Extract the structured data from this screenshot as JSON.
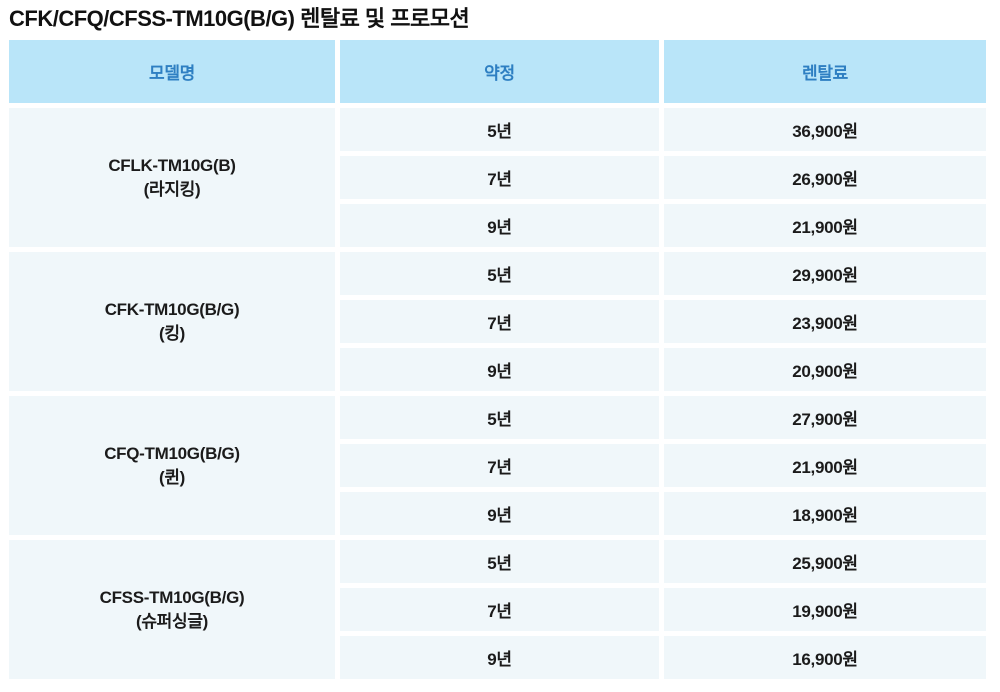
{
  "title": "CFK/CFQ/CFSS-TM10G(B/G) 렌탈료 및 프로모션",
  "colors": {
    "header_bg": "#b9e5f9",
    "header_text": "#2e7fc2",
    "cell_bg": "#f0f7fa",
    "body_text": "#1b1b1b"
  },
  "table": {
    "headers": [
      "모델명",
      "약정",
      "렌탈료"
    ],
    "groups": [
      {
        "model": "CFLK-TM10G(B)",
        "variant": "(라지킹)",
        "rows": [
          [
            "5년",
            "36,900원"
          ],
          [
            "7년",
            "26,900원"
          ],
          [
            "9년",
            "21,900원"
          ]
        ]
      },
      {
        "model": "CFK-TM10G(B/G)",
        "variant": "(킹)",
        "rows": [
          [
            "5년",
            "29,900원"
          ],
          [
            "7년",
            "23,900원"
          ],
          [
            "9년",
            "20,900원"
          ]
        ]
      },
      {
        "model": "CFQ-TM10G(B/G)",
        "variant": "(퀸)",
        "rows": [
          [
            "5년",
            "27,900원"
          ],
          [
            "7년",
            "21,900원"
          ],
          [
            "9년",
            "18,900원"
          ]
        ]
      },
      {
        "model": "CFSS-TM10G(B/G)",
        "variant": "(슈퍼싱글)",
        "rows": [
          [
            "5년",
            "25,900원"
          ],
          [
            "7년",
            "19,900원"
          ],
          [
            "9년",
            "16,900원"
          ]
        ]
      }
    ]
  }
}
